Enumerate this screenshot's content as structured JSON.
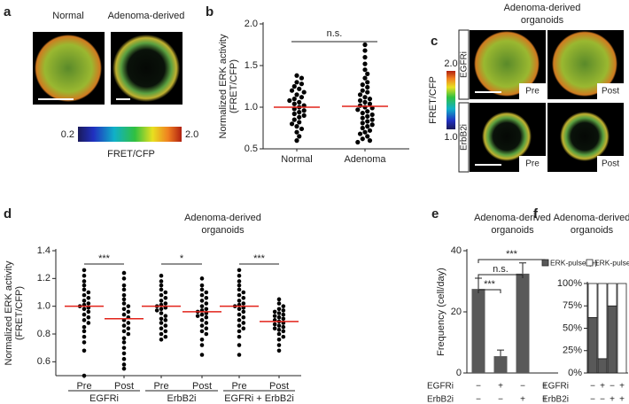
{
  "images": {
    "a": {
      "label": "a",
      "captions": [
        "Normal",
        "Adenoma-derived"
      ],
      "colorbar": {
        "lim": [
          0.2,
          2.0
        ],
        "ticks": [
          0.2,
          {
            "value": 2,
            "label": "2.0"
          }
        ],
        "label": "FRET/CFP"
      }
    },
    "c": {
      "label": "c",
      "title_lines": [
        "Adenoma-derived",
        "organoids"
      ],
      "rows": [
        "EGFRi",
        "ErbB2i"
      ],
      "columns": [
        "Pre",
        "Post"
      ],
      "colorbar": {
        "lim": [
          1.0,
          2.0
        ],
        "ticks": [
          {
            "value": 2,
            "label": "2.0"
          },
          {
            "value": 1,
            "label": "1.0"
          }
        ],
        "label": "FRET/CFP"
      }
    }
  },
  "chart_data": [
    {
      "label": "b",
      "type": "dot",
      "ylabel_lines": [
        "Normalized ERK activity",
        "(FRET/CFP)"
      ],
      "categories": [
        "Normal",
        "Adenoma"
      ],
      "values": [
        [
          1.38,
          1.35,
          1.3,
          1.28,
          1.25,
          1.22,
          1.2,
          1.18,
          1.15,
          1.12,
          1.1,
          1.08,
          1.06,
          1.04,
          1.02,
          1.0,
          0.98,
          0.96,
          0.94,
          0.92,
          0.9,
          0.88,
          0.85,
          0.82,
          0.8,
          0.77,
          0.74,
          0.7,
          0.65,
          0.6
        ],
        [
          1.75,
          1.68,
          1.6,
          1.52,
          1.45,
          1.4,
          1.35,
          1.3,
          1.27,
          1.24,
          1.2,
          1.18,
          1.15,
          1.12,
          1.1,
          1.08,
          1.06,
          1.04,
          1.02,
          1.0,
          0.99,
          0.97,
          0.95,
          0.93,
          0.91,
          0.89,
          0.87,
          0.85,
          0.83,
          0.81,
          0.79,
          0.77,
          0.75,
          0.72,
          0.7,
          0.68,
          0.65,
          0.62,
          0.6,
          0.58
        ]
      ],
      "means": [
        1.0,
        1.01
      ],
      "color": "#000000",
      "mean_color": "#e2231a",
      "ylim": [
        0.5,
        2.0
      ],
      "yticks": [
        0.5,
        {
          "value": 1,
          "label": "1.0"
        },
        1.5,
        {
          "value": 2,
          "label": "2.0"
        }
      ],
      "annotations": [
        "n.s."
      ]
    },
    {
      "label": "d",
      "type": "dot",
      "title_lines": [
        "Adenoma-derived",
        "organoids"
      ],
      "ylabel_lines": [
        "Normalized ERK activity",
        "(FRET/CFP)"
      ],
      "categories": [
        "Pre",
        "Post",
        "Pre",
        "Post",
        "Pre",
        "Post"
      ],
      "groups": [
        "EGFRi",
        "ErbB2i",
        "EGFRi + ErbB2i"
      ],
      "values": [
        [
          1.26,
          1.22,
          1.18,
          1.15,
          1.12,
          1.1,
          1.08,
          1.06,
          1.04,
          1.02,
          1.01,
          1.0,
          0.99,
          0.98,
          0.96,
          0.94,
          0.92,
          0.9,
          0.88,
          0.85,
          0.82,
          0.78,
          0.74,
          0.68,
          0.5
        ],
        [
          1.24,
          1.2,
          1.15,
          1.12,
          1.08,
          1.05,
          1.02,
          1.0,
          0.98,
          0.96,
          0.94,
          0.92,
          0.9,
          0.88,
          0.86,
          0.84,
          0.82,
          0.8,
          0.77,
          0.74,
          0.7,
          0.66,
          0.62,
          0.58,
          0.55
        ],
        [
          1.22,
          1.18,
          1.15,
          1.12,
          1.1,
          1.08,
          1.06,
          1.04,
          1.02,
          1.01,
          1.0,
          0.99,
          0.98,
          0.97,
          0.95,
          0.93,
          0.91,
          0.9,
          0.88,
          0.86,
          0.84,
          0.82,
          0.8,
          0.78,
          0.76
        ],
        [
          1.2,
          1.15,
          1.12,
          1.1,
          1.08,
          1.06,
          1.04,
          1.02,
          1.0,
          0.98,
          0.97,
          0.96,
          0.95,
          0.94,
          0.93,
          0.92,
          0.9,
          0.88,
          0.86,
          0.84,
          0.82,
          0.8,
          0.76,
          0.72,
          0.65
        ],
        [
          1.26,
          1.22,
          1.18,
          1.15,
          1.12,
          1.1,
          1.08,
          1.06,
          1.04,
          1.02,
          1.01,
          1.0,
          0.99,
          0.98,
          0.96,
          0.94,
          0.92,
          0.9,
          0.88,
          0.86,
          0.84,
          0.82,
          0.78,
          0.72,
          0.65
        ],
        [
          1.05,
          1.02,
          1.0,
          0.98,
          0.97,
          0.96,
          0.95,
          0.94,
          0.93,
          0.92,
          0.91,
          0.9,
          0.89,
          0.88,
          0.87,
          0.86,
          0.85,
          0.84,
          0.83,
          0.82,
          0.8,
          0.78,
          0.76,
          0.72,
          0.68
        ]
      ],
      "means": [
        1.0,
        0.91,
        1.0,
        0.96,
        1.0,
        0.89
      ],
      "color": "#000000",
      "mean_color": "#e2231a",
      "ylim": [
        0.5,
        1.4
      ],
      "yticks": [
        0.6,
        0.8,
        {
          "value": 1,
          "label": "1.0"
        },
        1.2,
        1.4
      ],
      "annotations": [
        "***",
        "*",
        "***"
      ]
    },
    {
      "label": "e",
      "type": "bar",
      "title_lines": [
        "Adenoma-derived",
        "organoids"
      ],
      "ylabel_lines": [
        "Frequency (cell/day)"
      ],
      "values": [
        27.5,
        5.5,
        32.5,
        0
      ],
      "errors": [
        3.5,
        2,
        3.5,
        null
      ],
      "color": "#595959",
      "ylim": [
        0,
        40
      ],
      "yticks": [
        0,
        20,
        40
      ],
      "rows": [
        {
          "name": "EGFRi",
          "marks": [
            "−",
            "+",
            "−",
            "+"
          ]
        },
        {
          "name": "ErbB2i",
          "marks": [
            "−",
            "−",
            "+",
            "+"
          ]
        }
      ],
      "annotations": [
        "***",
        "n.s.",
        "***"
      ]
    },
    {
      "label": "f",
      "type": "stacked_bar",
      "title_lines": [
        "Adenoma-derived",
        "organoids"
      ],
      "series": [
        {
          "name": "ERK-pulse (+)",
          "color": "#595959",
          "values": [
            62,
            16,
            75,
            0
          ]
        },
        {
          "name": "ERK-pulse (−)",
          "color": "#ffffff",
          "values": [
            38,
            84,
            25,
            100
          ]
        }
      ],
      "ylim": [
        0,
        100
      ],
      "yticks": [
        {
          "value": 0,
          "label": "0%"
        },
        {
          "value": 25,
          "label": "25%"
        },
        {
          "value": 50,
          "label": "50%"
        },
        {
          "value": 75,
          "label": "75%"
        },
        {
          "value": 100,
          "label": "100%"
        }
      ],
      "rows": [
        {
          "name": "EGFRi",
          "marks": [
            "−",
            "+",
            "−",
            "+"
          ]
        },
        {
          "name": "ErbB2i",
          "marks": [
            "−",
            "−",
            "+",
            "+"
          ]
        }
      ]
    }
  ]
}
